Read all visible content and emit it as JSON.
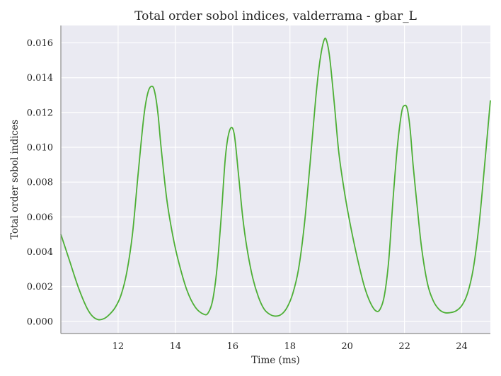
{
  "chart_data": {
    "type": "line",
    "title": "Total order sobol indices, valderrama - gbar_L",
    "xlabel": "Time (ms)",
    "ylabel": "Total order sobol indices",
    "xlim": [
      10,
      25
    ],
    "ylim": [
      -0.0007,
      0.017
    ],
    "xticks": [
      12,
      14,
      16,
      18,
      20,
      22,
      24
    ],
    "yticks": [
      0.0,
      0.002,
      0.004,
      0.006,
      0.008,
      0.01,
      0.012,
      0.014,
      0.016
    ],
    "ytick_labels": [
      "0.000",
      "0.002",
      "0.004",
      "0.006",
      "0.008",
      "0.010",
      "0.012",
      "0.014",
      "0.016"
    ],
    "grid": true,
    "background": "#eaeaf2",
    "series": [
      {
        "color": "#4daf35",
        "x": [
          10.0,
          10.3,
          10.6,
          10.9,
          11.1,
          11.3,
          11.5,
          11.7,
          11.9,
          12.1,
          12.3,
          12.5,
          12.7,
          12.9,
          13.05,
          13.2,
          13.3,
          13.4,
          13.5,
          13.7,
          13.9,
          14.1,
          14.4,
          14.7,
          15.0,
          15.15,
          15.3,
          15.45,
          15.6,
          15.75,
          15.9,
          16.05,
          16.2,
          16.35,
          16.5,
          16.7,
          16.9,
          17.1,
          17.3,
          17.5,
          17.7,
          17.9,
          18.1,
          18.3,
          18.5,
          18.7,
          18.9,
          19.05,
          19.2,
          19.3,
          19.4,
          19.55,
          19.7,
          19.85,
          20.0,
          20.2,
          20.4,
          20.6,
          20.8,
          21.0,
          21.15,
          21.3,
          21.45,
          21.6,
          21.75,
          21.9,
          22.0,
          22.1,
          22.2,
          22.3,
          22.45,
          22.6,
          22.8,
          23.0,
          23.2,
          23.4,
          23.6,
          23.8,
          24.0,
          24.2,
          24.4,
          24.6,
          24.8,
          25.0
        ],
        "y": [
          0.005,
          0.0035,
          0.002,
          0.0008,
          0.0003,
          0.0001,
          0.00015,
          0.0004,
          0.0008,
          0.0015,
          0.0028,
          0.005,
          0.0085,
          0.0118,
          0.0132,
          0.0135,
          0.013,
          0.0118,
          0.01,
          0.007,
          0.005,
          0.0035,
          0.0018,
          0.0008,
          0.0004,
          0.0005,
          0.0012,
          0.003,
          0.006,
          0.0095,
          0.011,
          0.0108,
          0.0085,
          0.006,
          0.0042,
          0.0025,
          0.0014,
          0.0007,
          0.0004,
          0.0003,
          0.0004,
          0.0008,
          0.0016,
          0.003,
          0.0055,
          0.009,
          0.0128,
          0.015,
          0.0162,
          0.016,
          0.015,
          0.0125,
          0.0098,
          0.008,
          0.0065,
          0.0048,
          0.0033,
          0.002,
          0.0011,
          0.0006,
          0.0007,
          0.0015,
          0.0035,
          0.007,
          0.01,
          0.012,
          0.0124,
          0.0122,
          0.011,
          0.009,
          0.0065,
          0.0042,
          0.0022,
          0.0012,
          0.0007,
          0.0005,
          0.0005,
          0.0006,
          0.0009,
          0.0016,
          0.003,
          0.0055,
          0.009,
          0.0127
        ]
      }
    ]
  }
}
